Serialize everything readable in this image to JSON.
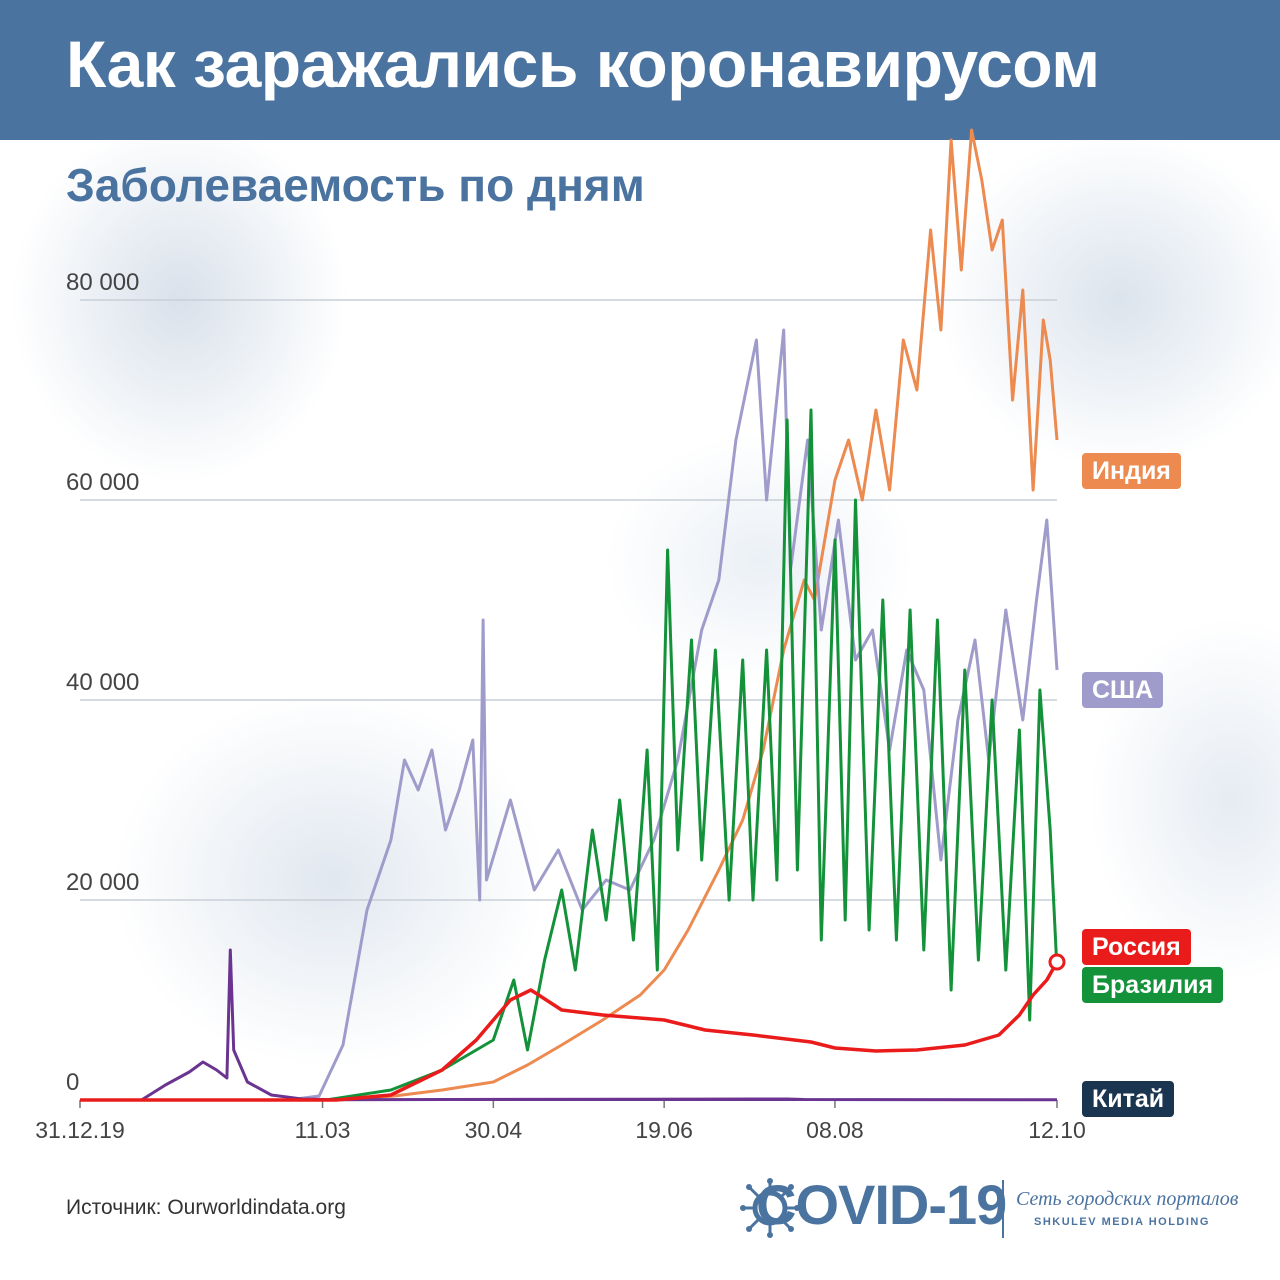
{
  "header": {
    "title": "Как заражались коронавирусом"
  },
  "subtitle": "Заболеваемость по дням",
  "source": "Источник:  Ourworldindata.org",
  "logo": {
    "main": "COVID-19",
    "network": "Сеть городских порталов",
    "holding": "SHKULEV MEDIA HOLDING"
  },
  "colors": {
    "header_bg": "#4b73a0",
    "india": "#ec8a4f",
    "usa": "#9f9ccb",
    "brazil": "#13923a",
    "russia": "#ea1b1b",
    "china": "#6a3490",
    "china_tag": "#1a3550"
  },
  "chart_data": {
    "type": "line",
    "title": "Заболеваемость по дням",
    "xlabel": "",
    "ylabel": "",
    "x_range": [
      "2019-12-31",
      "2020-10-12"
    ],
    "x_ticks": [
      {
        "date": "2019-12-31",
        "label": "31.12.19"
      },
      {
        "date": "2020-03-11",
        "label": "11.03"
      },
      {
        "date": "2020-04-30",
        "label": "30.04"
      },
      {
        "date": "2020-06-19",
        "label": "19.06"
      },
      {
        "date": "2020-08-08",
        "label": "08.08"
      },
      {
        "date": "2020-10-12",
        "label": "12.10"
      }
    ],
    "ylim": [
      0,
      95000
    ],
    "y_ticks": [
      {
        "value": 0,
        "label": "0"
      },
      {
        "value": 20000,
        "label": "20 000"
      },
      {
        "value": 40000,
        "label": "40 000"
      },
      {
        "value": 60000,
        "label": "60 000"
      },
      {
        "value": 80000,
        "label": "80 000"
      }
    ],
    "grid": true,
    "legend": "labels at line ends (right)",
    "series": [
      {
        "name": "Индия",
        "key": "india",
        "points": [
          [
            "2020-03-15",
            0
          ],
          [
            "2020-04-01",
            400
          ],
          [
            "2020-04-15",
            1000
          ],
          [
            "2020-04-30",
            1800
          ],
          [
            "2020-05-10",
            3500
          ],
          [
            "2020-05-20",
            5500
          ],
          [
            "2020-06-01",
            8000
          ],
          [
            "2020-06-12",
            10500
          ],
          [
            "2020-06-19",
            13000
          ],
          [
            "2020-06-26",
            17000
          ],
          [
            "2020-07-05",
            23000
          ],
          [
            "2020-07-12",
            28000
          ],
          [
            "2020-07-18",
            35000
          ],
          [
            "2020-07-24",
            45000
          ],
          [
            "2020-07-30",
            52000
          ],
          [
            "2020-08-02",
            50000
          ],
          [
            "2020-08-08",
            62000
          ],
          [
            "2020-08-12",
            66000
          ],
          [
            "2020-08-16",
            60000
          ],
          [
            "2020-08-20",
            69000
          ],
          [
            "2020-08-24",
            61000
          ],
          [
            "2020-08-28",
            76000
          ],
          [
            "2020-09-01",
            71000
          ],
          [
            "2020-09-05",
            87000
          ],
          [
            "2020-09-08",
            77000
          ],
          [
            "2020-09-11",
            96000
          ],
          [
            "2020-09-14",
            83000
          ],
          [
            "2020-09-17",
            97000
          ],
          [
            "2020-09-20",
            92000
          ],
          [
            "2020-09-23",
            85000
          ],
          [
            "2020-09-26",
            88000
          ],
          [
            "2020-09-29",
            70000
          ],
          [
            "2020-10-02",
            81000
          ],
          [
            "2020-10-05",
            61000
          ],
          [
            "2020-10-08",
            78000
          ],
          [
            "2020-10-10",
            74000
          ],
          [
            "2020-10-12",
            66000
          ]
        ]
      },
      {
        "name": "США",
        "key": "usa",
        "points": [
          [
            "2020-03-01",
            0
          ],
          [
            "2020-03-10",
            400
          ],
          [
            "2020-03-17",
            5500
          ],
          [
            "2020-03-24",
            19000
          ],
          [
            "2020-03-31",
            26000
          ],
          [
            "2020-04-04",
            34000
          ],
          [
            "2020-04-08",
            31000
          ],
          [
            "2020-04-12",
            35000
          ],
          [
            "2020-04-16",
            27000
          ],
          [
            "2020-04-20",
            31000
          ],
          [
            "2020-04-24",
            36000
          ],
          [
            "2020-04-26",
            20000
          ],
          [
            "2020-04-27",
            48000
          ],
          [
            "2020-04-28",
            22000
          ],
          [
            "2020-05-05",
            30000
          ],
          [
            "2020-05-12",
            21000
          ],
          [
            "2020-05-19",
            25000
          ],
          [
            "2020-05-26",
            19000
          ],
          [
            "2020-06-02",
            22000
          ],
          [
            "2020-06-09",
            21000
          ],
          [
            "2020-06-16",
            26000
          ],
          [
            "2020-06-23",
            34000
          ],
          [
            "2020-06-30",
            47000
          ],
          [
            "2020-07-05",
            52000
          ],
          [
            "2020-07-10",
            66000
          ],
          [
            "2020-07-16",
            76000
          ],
          [
            "2020-07-19",
            60000
          ],
          [
            "2020-07-24",
            77000
          ],
          [
            "2020-07-26",
            53000
          ],
          [
            "2020-07-31",
            66000
          ],
          [
            "2020-08-04",
            47000
          ],
          [
            "2020-08-09",
            58000
          ],
          [
            "2020-08-14",
            44000
          ],
          [
            "2020-08-19",
            47000
          ],
          [
            "2020-08-24",
            35000
          ],
          [
            "2020-08-29",
            45000
          ],
          [
            "2020-09-03",
            41000
          ],
          [
            "2020-09-08",
            24000
          ],
          [
            "2020-09-13",
            38000
          ],
          [
            "2020-09-18",
            46000
          ],
          [
            "2020-09-22",
            34000
          ],
          [
            "2020-09-27",
            49000
          ],
          [
            "2020-10-02",
            38000
          ],
          [
            "2020-10-06",
            50000
          ],
          [
            "2020-10-09",
            58000
          ],
          [
            "2020-10-12",
            43000
          ]
        ]
      },
      {
        "name": "Бразилия",
        "key": "brazil",
        "points": [
          [
            "2020-03-12",
            0
          ],
          [
            "2020-03-31",
            1000
          ],
          [
            "2020-04-15",
            3000
          ],
          [
            "2020-04-30",
            6000
          ],
          [
            "2020-05-06",
            12000
          ],
          [
            "2020-05-10",
            5000
          ],
          [
            "2020-05-15",
            14000
          ],
          [
            "2020-05-20",
            21000
          ],
          [
            "2020-05-24",
            13000
          ],
          [
            "2020-05-29",
            27000
          ],
          [
            "2020-06-02",
            18000
          ],
          [
            "2020-06-06",
            30000
          ],
          [
            "2020-06-10",
            16000
          ],
          [
            "2020-06-14",
            35000
          ],
          [
            "2020-06-17",
            13000
          ],
          [
            "2020-06-20",
            55000
          ],
          [
            "2020-06-23",
            25000
          ],
          [
            "2020-06-27",
            46000
          ],
          [
            "2020-06-30",
            24000
          ],
          [
            "2020-07-04",
            45000
          ],
          [
            "2020-07-08",
            20000
          ],
          [
            "2020-07-12",
            44000
          ],
          [
            "2020-07-15",
            20000
          ],
          [
            "2020-07-19",
            45000
          ],
          [
            "2020-07-22",
            22000
          ],
          [
            "2020-07-25",
            68000
          ],
          [
            "2020-07-28",
            23000
          ],
          [
            "2020-08-01",
            69000
          ],
          [
            "2020-08-04",
            16000
          ],
          [
            "2020-08-08",
            56000
          ],
          [
            "2020-08-11",
            18000
          ],
          [
            "2020-08-14",
            60000
          ],
          [
            "2020-08-18",
            17000
          ],
          [
            "2020-08-22",
            50000
          ],
          [
            "2020-08-26",
            16000
          ],
          [
            "2020-08-30",
            49000
          ],
          [
            "2020-09-03",
            15000
          ],
          [
            "2020-09-07",
            48000
          ],
          [
            "2020-09-11",
            11000
          ],
          [
            "2020-09-15",
            43000
          ],
          [
            "2020-09-19",
            14000
          ],
          [
            "2020-09-23",
            40000
          ],
          [
            "2020-09-27",
            13000
          ],
          [
            "2020-10-01",
            37000
          ],
          [
            "2020-10-04",
            8000
          ],
          [
            "2020-10-07",
            41000
          ],
          [
            "2020-10-10",
            27000
          ],
          [
            "2020-10-12",
            13000
          ]
        ]
      },
      {
        "name": "Россия",
        "key": "russia",
        "points": [
          [
            "2019-12-31",
            0
          ],
          [
            "2020-03-15",
            0
          ],
          [
            "2020-03-31",
            500
          ],
          [
            "2020-04-15",
            3000
          ],
          [
            "2020-04-25",
            6000
          ],
          [
            "2020-05-05",
            10000
          ],
          [
            "2020-05-11",
            11000
          ],
          [
            "2020-05-20",
            9000
          ],
          [
            "2020-06-01",
            8500
          ],
          [
            "2020-06-19",
            8000
          ],
          [
            "2020-07-01",
            7000
          ],
          [
            "2020-07-15",
            6500
          ],
          [
            "2020-08-01",
            5800
          ],
          [
            "2020-08-08",
            5200
          ],
          [
            "2020-08-20",
            4900
          ],
          [
            "2020-09-01",
            5000
          ],
          [
            "2020-09-15",
            5500
          ],
          [
            "2020-09-25",
            6500
          ],
          [
            "2020-10-01",
            8500
          ],
          [
            "2020-10-05",
            10500
          ],
          [
            "2020-10-09",
            12000
          ],
          [
            "2020-10-12",
            13800
          ]
        ]
      },
      {
        "name": "Китай",
        "key": "china",
        "points": [
          [
            "2019-12-31",
            0
          ],
          [
            "2020-01-18",
            0
          ],
          [
            "2020-01-25",
            1500
          ],
          [
            "2020-02-01",
            2800
          ],
          [
            "2020-02-05",
            3800
          ],
          [
            "2020-02-09",
            3000
          ],
          [
            "2020-02-12",
            2200
          ],
          [
            "2020-02-13",
            15000
          ],
          [
            "2020-02-14",
            5000
          ],
          [
            "2020-02-18",
            1800
          ],
          [
            "2020-02-25",
            500
          ],
          [
            "2020-03-05",
            100
          ],
          [
            "2020-03-15",
            30
          ],
          [
            "2020-07-25",
            100
          ],
          [
            "2020-07-30",
            50
          ],
          [
            "2020-10-12",
            20
          ]
        ]
      }
    ]
  }
}
